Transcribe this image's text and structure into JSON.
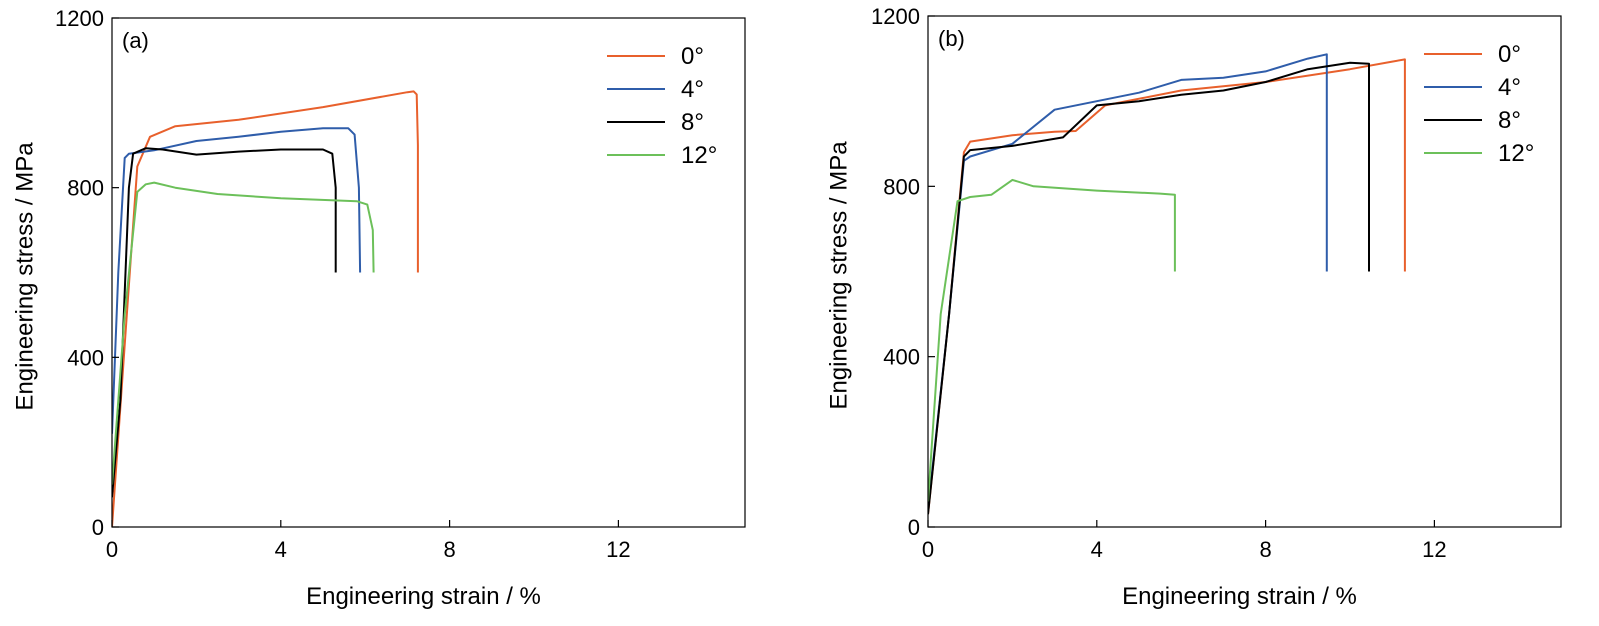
{
  "chart_data": [
    {
      "type": "line",
      "panel_label": "(a)",
      "xlabel": "Engineering strain / %",
      "ylabel": "Engineering stress / MPa",
      "xlim": [
        0,
        15
      ],
      "ylim": [
        0,
        1200
      ],
      "xticks": [
        0,
        4,
        8,
        12
      ],
      "yticks": [
        0,
        400,
        800,
        1200
      ],
      "legend_position": "top-right",
      "series": [
        {
          "name": "0°",
          "color": "#E8602C",
          "points": [
            [
              0,
              0
            ],
            [
              0.35,
              500
            ],
            [
              0.6,
              850
            ],
            [
              0.9,
              920
            ],
            [
              1.5,
              945
            ],
            [
              3,
              960
            ],
            [
              5,
              990
            ],
            [
              7,
              1025
            ],
            [
              7.15,
              1027
            ],
            [
              7.22,
              1020
            ],
            [
              7.25,
              900
            ],
            [
              7.25,
              600
            ]
          ]
        },
        {
          "name": "4°",
          "color": "#2F5DAA",
          "points": [
            [
              0,
              220
            ],
            [
              0.15,
              600
            ],
            [
              0.3,
              870
            ],
            [
              0.4,
              880
            ],
            [
              1,
              888
            ],
            [
              2,
              910
            ],
            [
              3,
              920
            ],
            [
              4,
              932
            ],
            [
              5,
              940
            ],
            [
              5.6,
              940
            ],
            [
              5.75,
              925
            ],
            [
              5.85,
              800
            ],
            [
              5.88,
              600
            ]
          ]
        },
        {
          "name": "8°",
          "color": "#000000",
          "points": [
            [
              0,
              70
            ],
            [
              0.2,
              300
            ],
            [
              0.4,
              800
            ],
            [
              0.5,
              880
            ],
            [
              0.8,
              893
            ],
            [
              1.2,
              890
            ],
            [
              2,
              878
            ],
            [
              3,
              885
            ],
            [
              4,
              890
            ],
            [
              5,
              890
            ],
            [
              5.22,
              880
            ],
            [
              5.3,
              800
            ],
            [
              5.3,
              600
            ]
          ]
        },
        {
          "name": "12°",
          "color": "#6CC05A",
          "points": [
            [
              0,
              100
            ],
            [
              0.3,
              500
            ],
            [
              0.6,
              790
            ],
            [
              0.8,
              808
            ],
            [
              1,
              812
            ],
            [
              1.5,
              800
            ],
            [
              2.5,
              785
            ],
            [
              4,
              775
            ],
            [
              5.8,
              768
            ],
            [
              6.05,
              760
            ],
            [
              6.18,
              700
            ],
            [
              6.2,
              600
            ]
          ]
        }
      ]
    },
    {
      "type": "line",
      "panel_label": "(b)",
      "xlabel": "Engineering strain / %",
      "ylabel": "Engineering stress / MPa",
      "xlim": [
        0,
        15
      ],
      "ylim": [
        0,
        1200
      ],
      "xticks": [
        0,
        4,
        8,
        12
      ],
      "yticks": [
        0,
        400,
        800,
        1200
      ],
      "legend_position": "top-right",
      "series": [
        {
          "name": "0°",
          "color": "#E8602C",
          "points": [
            [
              0,
              30
            ],
            [
              0.5,
              500
            ],
            [
              0.85,
              880
            ],
            [
              1,
              905
            ],
            [
              2,
              920
            ],
            [
              3,
              928
            ],
            [
              3.5,
              930
            ],
            [
              4.2,
              990
            ],
            [
              6,
              1025
            ],
            [
              8,
              1045
            ],
            [
              10,
              1075
            ],
            [
              11,
              1093
            ],
            [
              11.3,
              1098
            ],
            [
              11.3,
              600
            ]
          ]
        },
        {
          "name": "4°",
          "color": "#2F5DAA",
          "points": [
            [
              0,
              40
            ],
            [
              0.5,
              500
            ],
            [
              0.85,
              860
            ],
            [
              1,
              870
            ],
            [
              2,
              900
            ],
            [
              3,
              980
            ],
            [
              4,
              1000
            ],
            [
              5,
              1020
            ],
            [
              6,
              1050
            ],
            [
              7,
              1055
            ],
            [
              8,
              1070
            ],
            [
              9,
              1100
            ],
            [
              9.45,
              1110
            ],
            [
              9.45,
              600
            ]
          ]
        },
        {
          "name": "8°",
          "color": "#000000",
          "points": [
            [
              0,
              30
            ],
            [
              0.5,
              500
            ],
            [
              0.85,
              870
            ],
            [
              1,
              885
            ],
            [
              2,
              895
            ],
            [
              3.2,
              915
            ],
            [
              4,
              990
            ],
            [
              5,
              1000
            ],
            [
              6,
              1015
            ],
            [
              7,
              1025
            ],
            [
              8,
              1045
            ],
            [
              9,
              1075
            ],
            [
              10,
              1090
            ],
            [
              10.45,
              1088
            ],
            [
              10.45,
              600
            ]
          ]
        },
        {
          "name": "12°",
          "color": "#6CC05A",
          "points": [
            [
              0,
              60
            ],
            [
              0.3,
              500
            ],
            [
              0.7,
              765
            ],
            [
              1,
              775
            ],
            [
              1.5,
              780
            ],
            [
              2,
              815
            ],
            [
              2.5,
              800
            ],
            [
              4,
              790
            ],
            [
              5.5,
              783
            ],
            [
              5.85,
              780
            ],
            [
              5.85,
              600
            ]
          ]
        }
      ]
    }
  ]
}
